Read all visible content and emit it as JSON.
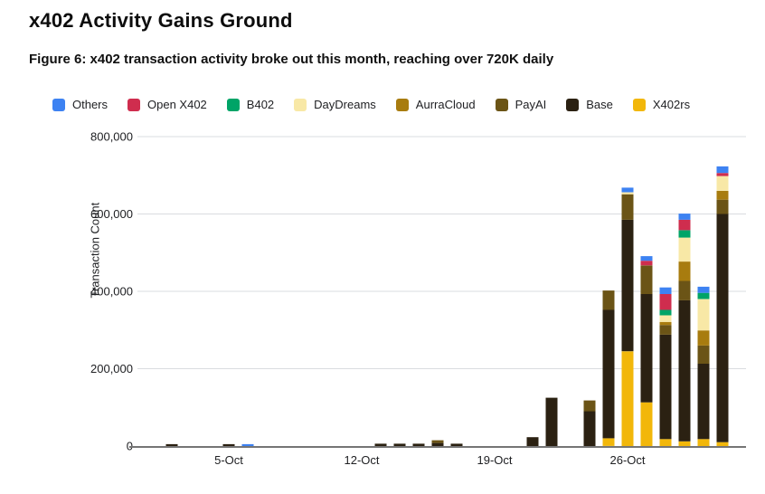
{
  "header": {
    "title": "x402 Activity Gains Ground",
    "subtitle": "Figure 6: x402 transaction activity broke out this month, reaching over 720K daily"
  },
  "chart_data": {
    "type": "bar",
    "stacked": true,
    "title": "x402 Activity Gains Ground",
    "xlabel": "",
    "ylabel": "Transaction Count",
    "ylim": [
      0,
      800000
    ],
    "grid": true,
    "legend_position": "top",
    "y_ticks": [
      0,
      200000,
      400000,
      600000,
      800000
    ],
    "y_tick_labels": [
      "0",
      "200,000",
      "400,000",
      "600,000",
      "800,000"
    ],
    "x_tick_days": [
      5,
      12,
      19,
      26
    ],
    "x_tick_labels": [
      "5-Oct",
      "12-Oct",
      "19-Oct",
      "26-Oct"
    ],
    "categories": [
      "1-Oct",
      "2-Oct",
      "3-Oct",
      "4-Oct",
      "5-Oct",
      "6-Oct",
      "7-Oct",
      "8-Oct",
      "9-Oct",
      "10-Oct",
      "11-Oct",
      "12-Oct",
      "13-Oct",
      "14-Oct",
      "15-Oct",
      "16-Oct",
      "17-Oct",
      "18-Oct",
      "19-Oct",
      "20-Oct",
      "21-Oct",
      "22-Oct",
      "23-Oct",
      "24-Oct",
      "25-Oct",
      "26-Oct",
      "27-Oct",
      "28-Oct",
      "29-Oct",
      "30-Oct",
      "31-Oct"
    ],
    "legend_order": [
      "Others",
      "Open X402",
      "B402",
      "DayDreams",
      "AurraCloud",
      "PayAI",
      "Base",
      "X402rs"
    ],
    "series": [
      {
        "name": "X402rs",
        "color": "#F2B70A",
        "values": [
          0,
          0,
          0,
          0,
          0,
          0,
          0,
          0,
          0,
          0,
          0,
          0,
          0,
          0,
          0,
          0,
          0,
          0,
          0,
          0,
          0,
          0,
          0,
          0,
          20000,
          245000,
          113000,
          18000,
          12000,
          18000,
          10000
        ]
      },
      {
        "name": "Base",
        "color": "#2B2112",
        "values": [
          0,
          5000,
          0,
          0,
          5000,
          0,
          0,
          0,
          0,
          0,
          0,
          0,
          6000,
          6000,
          6000,
          8000,
          6000,
          0,
          0,
          0,
          23000,
          125000,
          0,
          90000,
          332000,
          340000,
          280000,
          270000,
          365000,
          195000,
          590000
        ]
      },
      {
        "name": "PayAI",
        "color": "#6B5416",
        "values": [
          0,
          0,
          0,
          0,
          0,
          0,
          0,
          0,
          0,
          0,
          0,
          0,
          0,
          0,
          0,
          7000,
          0,
          0,
          0,
          0,
          0,
          0,
          0,
          28000,
          50000,
          66000,
          74000,
          25000,
          50000,
          47000,
          37000
        ]
      },
      {
        "name": "AurraCloud",
        "color": "#A87C0F",
        "values": [
          0,
          0,
          0,
          0,
          0,
          0,
          0,
          0,
          0,
          0,
          0,
          0,
          0,
          0,
          0,
          0,
          0,
          0,
          0,
          0,
          0,
          0,
          0,
          0,
          0,
          0,
          0,
          8000,
          50000,
          39000,
          23000
        ]
      },
      {
        "name": "DayDreams",
        "color": "#F8E8A6",
        "values": [
          0,
          0,
          0,
          0,
          0,
          0,
          0,
          0,
          0,
          0,
          0,
          0,
          0,
          0,
          0,
          0,
          0,
          0,
          0,
          0,
          0,
          0,
          0,
          0,
          0,
          5000,
          0,
          17000,
          62000,
          81000,
          38000
        ]
      },
      {
        "name": "B402",
        "color": "#00A467",
        "values": [
          0,
          0,
          0,
          0,
          0,
          0,
          0,
          0,
          0,
          0,
          0,
          0,
          0,
          0,
          0,
          0,
          0,
          0,
          0,
          0,
          0,
          0,
          0,
          0,
          0,
          0,
          0,
          14000,
          19000,
          16000,
          0
        ]
      },
      {
        "name": "Open X402",
        "color": "#CF2D4E",
        "values": [
          0,
          0,
          0,
          0,
          0,
          0,
          0,
          0,
          0,
          0,
          0,
          0,
          0,
          0,
          0,
          0,
          0,
          0,
          0,
          0,
          0,
          0,
          0,
          0,
          0,
          0,
          12000,
          41000,
          27000,
          0,
          8000
        ]
      },
      {
        "name": "Others",
        "color": "#3D82F2",
        "values": [
          0,
          0,
          0,
          0,
          0,
          5000,
          0,
          0,
          0,
          0,
          0,
          0,
          0,
          0,
          0,
          0,
          0,
          0,
          0,
          0,
          0,
          0,
          0,
          0,
          0,
          12000,
          12000,
          17000,
          16000,
          16000,
          17000
        ]
      }
    ]
  },
  "style": {
    "gridline_color": "#DADCE0",
    "axis_line_color": "#757575",
    "tick_label_color": "#202124"
  }
}
